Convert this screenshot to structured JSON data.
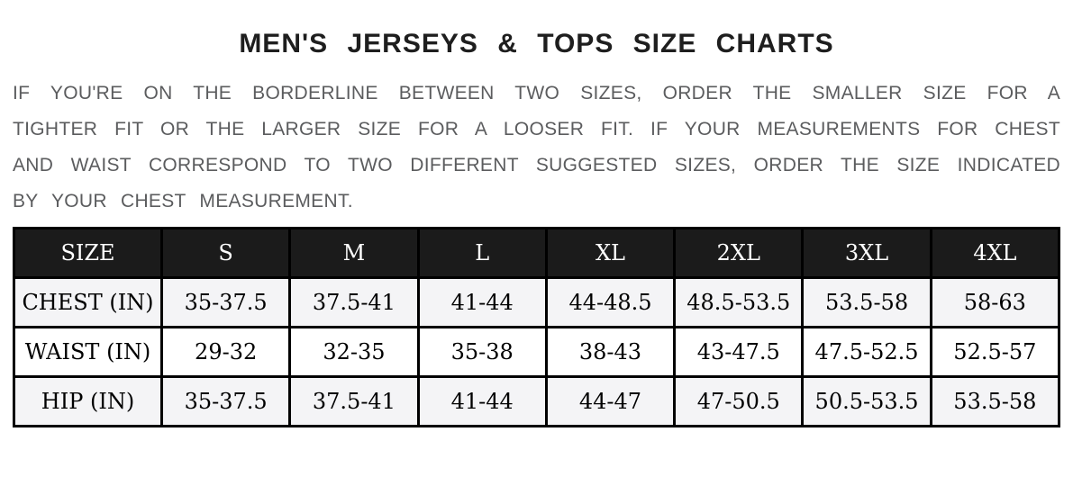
{
  "title": "MEN'S JERSEYS & TOPS SIZE CHARTS",
  "intro": {
    "lines": [
      "IF YOU'RE ON THE BORDERLINE BETWEEN TWO SIZES, ORDER THE SMALLER SIZE FOR A",
      "TIGHTER FIT OR THE LARGER SIZE FOR A LOOSER FIT. IF YOUR MEASUREMENTS FOR CHEST",
      "AND WAIST CORRESPOND TO TWO DIFFERENT SUGGESTED SIZES, ORDER THE SIZE INDICATED",
      "BY YOUR CHEST MEASUREMENT."
    ]
  },
  "size_chart": {
    "columns": [
      "SIZE",
      "S",
      "M",
      "L",
      "XL",
      "2XL",
      "3XL",
      "4XL"
    ],
    "rows": [
      {
        "label": "CHEST (IN)",
        "values": [
          "35-37.5",
          "37.5-41",
          "41-44",
          "44-48.5",
          "48.5-53.5",
          "53.5-58",
          "58-63"
        ]
      },
      {
        "label": "WAIST (IN)",
        "values": [
          "29-32",
          "32-35",
          "35-38",
          "38-43",
          "43-47.5",
          "47.5-52.5",
          "52.5-57"
        ]
      },
      {
        "label": "HIP (IN)",
        "values": [
          "35-37.5",
          "37.5-41",
          "41-44",
          "44-47",
          "47-50.5",
          "50.5-53.5",
          "53.5-58"
        ]
      }
    ]
  },
  "colors": {
    "header_bg": "#1b1b1b",
    "header_text": "#ffffff",
    "row_stripe": "#f4f4f6",
    "row_plain": "#ffffff",
    "table_border": "#000000",
    "title_text": "#1e1e1e",
    "intro_text": "#5b5c5e"
  }
}
